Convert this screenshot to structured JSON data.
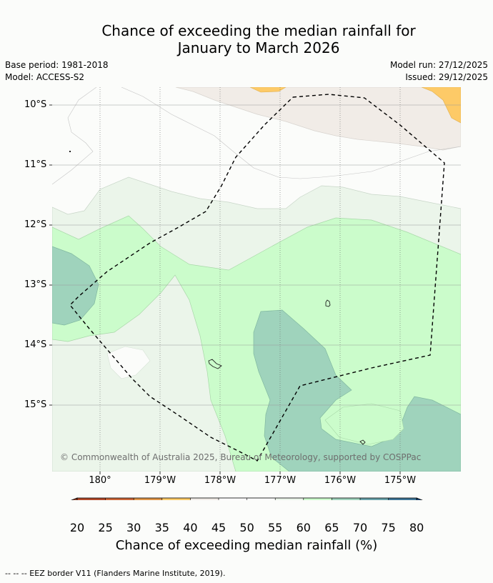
{
  "title_line1": "Chance of exceeding the median rainfall for",
  "title_line2": "January to March 2026",
  "meta": {
    "base_period": "Base period: 1981-2018",
    "model": "Model: ACCESS-S2",
    "model_run": "Model run: 27/12/2025",
    "issued": "Issued: 29/12/2025"
  },
  "map": {
    "latitude_labels": [
      "10°S",
      "11°S",
      "12°S",
      "13°S",
      "14°S",
      "15°S"
    ],
    "longitude_labels": [
      "180°",
      "179°W",
      "178°W",
      "177°W",
      "176°W",
      "175°W"
    ],
    "copyright": "© Commonwealth of Australia 2025, Bureau of Meteorology, supported by COSPPac",
    "background_color": "#fbfcfa"
  },
  "colorbar": {
    "title": "Chance of exceeding median rainfall (%)",
    "labels": [
      "20",
      "25",
      "30",
      "35",
      "40",
      "45",
      "50",
      "55",
      "60",
      "65",
      "70",
      "75",
      "80"
    ],
    "colors": [
      "#8b3a22",
      "#b34a2a",
      "#cc6638",
      "#e09548",
      "#fdca67",
      "#f1ece7",
      "#ffffff",
      "#fbfcfa",
      "#ebf5ea",
      "#cbfccb",
      "#9fd3bc",
      "#69a3aa",
      "#3e7597",
      "#16457b"
    ]
  },
  "footnote": "--  --  -- EEZ border V11 (Flanders Marine Institute, 2019)."
}
